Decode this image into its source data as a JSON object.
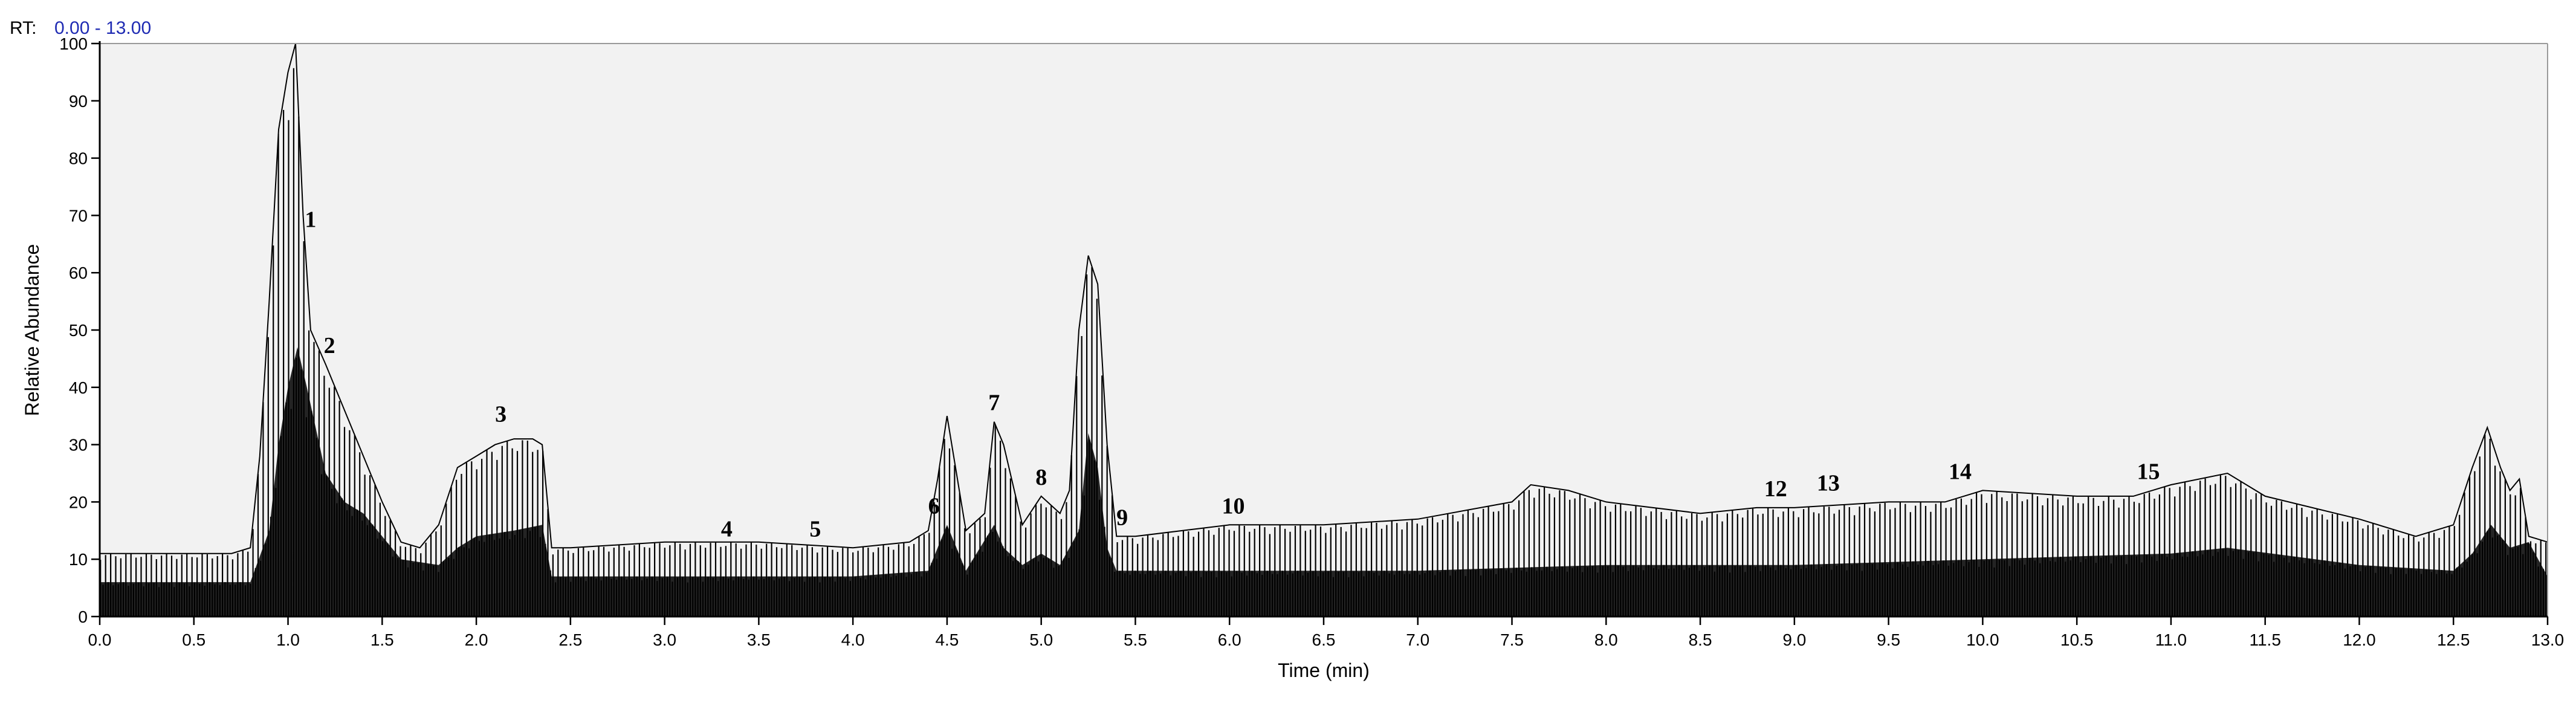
{
  "header": {
    "rt_prefix": "RT:",
    "rt_range": "0.00 - 13.00",
    "rt_range_color": "#1f2bb3"
  },
  "colors": {
    "trace": "#000000",
    "frame": "#9a9a9a",
    "plot_background": "#f2f2f2",
    "page_background": "#ffffff"
  },
  "chart_data": {
    "type": "line",
    "title": "",
    "xlabel": "Time (min)",
    "ylabel": "Relative Abundance",
    "xlim": [
      0,
      13
    ],
    "ylim": [
      0,
      100
    ],
    "x_ticks": [
      "0.0",
      "0.5",
      "1.0",
      "1.5",
      "2.0",
      "2.5",
      "3.0",
      "3.5",
      "4.0",
      "4.5",
      "5.0",
      "5.5",
      "6.0",
      "6.5",
      "7.0",
      "7.5",
      "8.0",
      "8.5",
      "9.0",
      "9.5",
      "10.0",
      "10.5",
      "11.0",
      "11.5",
      "12.0",
      "12.5",
      "13.0"
    ],
    "y_ticks": [
      "0",
      "10",
      "20",
      "30",
      "40",
      "50",
      "60",
      "70",
      "80",
      "90",
      "100"
    ],
    "grid": false,
    "legend": "none",
    "series": [
      {
        "role": "upper-envelope",
        "x": [
          0.0,
          0.1,
          0.3,
          0.5,
          0.7,
          0.8,
          0.85,
          0.9,
          0.95,
          1.0,
          1.04,
          1.08,
          1.12,
          1.2,
          1.3,
          1.4,
          1.5,
          1.6,
          1.7,
          1.8,
          1.9,
          2.0,
          2.1,
          2.2,
          2.3,
          2.35,
          2.4,
          2.5,
          3.0,
          3.5,
          4.0,
          4.3,
          4.4,
          4.45,
          4.5,
          4.55,
          4.6,
          4.7,
          4.75,
          4.8,
          4.9,
          5.0,
          5.1,
          5.15,
          5.2,
          5.25,
          5.3,
          5.35,
          5.4,
          5.5,
          6.0,
          6.5,
          7.0,
          7.5,
          7.6,
          7.8,
          8.0,
          8.5,
          8.8,
          9.0,
          9.5,
          9.8,
          10.0,
          10.5,
          10.8,
          11.0,
          11.3,
          11.5,
          12.0,
          12.3,
          12.5,
          12.6,
          12.68,
          12.75,
          12.8,
          12.85,
          12.9,
          13.0
        ],
        "y": [
          11,
          11,
          11,
          11,
          11,
          12,
          28,
          55,
          85,
          95,
          100,
          70,
          50,
          44,
          36,
          28,
          20,
          13,
          12,
          16,
          26,
          28,
          30,
          31,
          31,
          30,
          12,
          12,
          13,
          13,
          12,
          13,
          15,
          24,
          35,
          25,
          15,
          18,
          34,
          30,
          16,
          21,
          18,
          22,
          50,
          63,
          58,
          30,
          14,
          14,
          16,
          16,
          17,
          20,
          23,
          22,
          20,
          18,
          19,
          19,
          20,
          20,
          22,
          21,
          21,
          23,
          25,
          21,
          17,
          14,
          16,
          26,
          33,
          26,
          22,
          24,
          14,
          13
        ]
      },
      {
        "role": "lower-fill",
        "x": [
          0.0,
          0.5,
          0.8,
          0.9,
          0.95,
          1.0,
          1.05,
          1.1,
          1.2,
          1.3,
          1.4,
          1.6,
          1.8,
          1.9,
          2.0,
          2.2,
          2.35,
          2.4,
          3.0,
          4.0,
          4.4,
          4.5,
          4.6,
          4.75,
          4.8,
          4.9,
          5.0,
          5.1,
          5.2,
          5.25,
          5.3,
          5.35,
          5.4,
          6.0,
          7.0,
          8.0,
          9.0,
          10.0,
          11.0,
          11.3,
          12.0,
          12.5,
          12.6,
          12.7,
          12.8,
          12.9,
          13.0
        ],
        "y": [
          6,
          6,
          6,
          15,
          30,
          40,
          47,
          40,
          25,
          20,
          18,
          10,
          9,
          12,
          14,
          15,
          16,
          7,
          7,
          7,
          8,
          16,
          8,
          16,
          12,
          9,
          11,
          9,
          15,
          32,
          26,
          12,
          8,
          8,
          8,
          9,
          9,
          10,
          11,
          12,
          9,
          8,
          11,
          16,
          12,
          13,
          7
        ]
      }
    ],
    "annotations": [
      {
        "label": "1",
        "x": 1.12,
        "y": 68
      },
      {
        "label": "2",
        "x": 1.22,
        "y": 46
      },
      {
        "label": "3",
        "x": 2.13,
        "y": 34
      },
      {
        "label": "4",
        "x": 3.33,
        "y": 14
      },
      {
        "label": "5",
        "x": 3.8,
        "y": 14
      },
      {
        "label": "6",
        "x": 4.43,
        "y": 18
      },
      {
        "label": "7",
        "x": 4.75,
        "y": 36
      },
      {
        "label": "8",
        "x": 5.0,
        "y": 23
      },
      {
        "label": "9",
        "x": 5.43,
        "y": 16
      },
      {
        "label": "10",
        "x": 6.02,
        "y": 18
      },
      {
        "label": "12",
        "x": 8.9,
        "y": 21
      },
      {
        "label": "13",
        "x": 9.18,
        "y": 22
      },
      {
        "label": "14",
        "x": 9.88,
        "y": 24
      },
      {
        "label": "15",
        "x": 10.88,
        "y": 24
      }
    ]
  }
}
